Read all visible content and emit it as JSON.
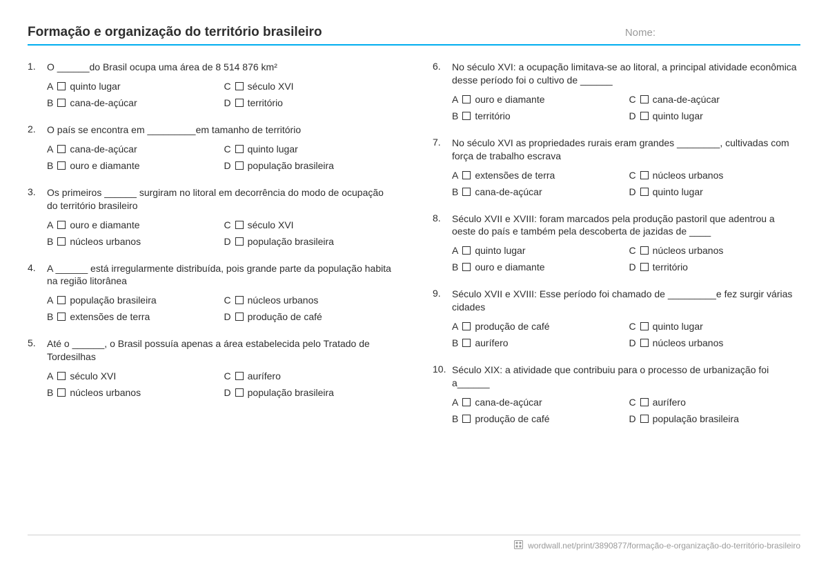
{
  "header": {
    "title": "Formação e organização do território brasileiro",
    "name_label": "Nome:"
  },
  "colors": {
    "rule": "#00aeef",
    "text": "#2e2e2e",
    "muted": "#9a9a9a",
    "border": "#cfcfcf"
  },
  "questions": [
    {
      "n": "1.",
      "text": "O ______do Brasil ocupa uma área de 8 514 876 km²",
      "opts": {
        "A": "quinto lugar",
        "B": "cana-de-açúcar",
        "C": "século XVI",
        "D": "território"
      }
    },
    {
      "n": "2.",
      "text": "O país se encontra em _________em tamanho de território",
      "opts": {
        "A": "cana-de-açúcar",
        "B": "ouro e diamante",
        "C": "quinto lugar",
        "D": "população brasileira"
      }
    },
    {
      "n": "3.",
      "text": "Os primeiros ______ surgiram no litoral em decorrência do modo de ocupação do território brasileiro",
      "opts": {
        "A": "ouro e diamante",
        "B": "núcleos urbanos",
        "C": "século XVI",
        "D": "população brasileira"
      }
    },
    {
      "n": "4.",
      "text": "A ______ está irregularmente distribuída, pois grande parte da população habita na região litorânea",
      "opts": {
        "A": "população brasileira",
        "B": "extensões de terra",
        "C": "núcleos urbanos",
        "D": "produção de café"
      }
    },
    {
      "n": "5.",
      "text": "Até o ______, o Brasil possuía apenas a área estabelecida pelo Tratado de Tordesilhas",
      "opts": {
        "A": "século XVI",
        "B": "núcleos urbanos",
        "C": "aurífero",
        "D": "população brasileira"
      }
    },
    {
      "n": "6.",
      "text": "No século XVI: a ocupação limitava-se ao litoral, a principal atividade econômica desse período foi o cultivo de ______",
      "opts": {
        "A": "ouro e diamante",
        "B": "território",
        "C": "cana-de-açúcar",
        "D": "quinto lugar"
      }
    },
    {
      "n": "7.",
      "text": "No século XVI as propriedades rurais eram grandes ________, cultivadas com força de trabalho escrava",
      "opts": {
        "A": "extensões de terra",
        "B": "cana-de-açúcar",
        "C": "núcleos urbanos",
        "D": "quinto lugar"
      }
    },
    {
      "n": "8.",
      "text": "Século XVII e XVIII: foram marcados pela produção pastoril que adentrou a oeste do país e também pela descoberta de jazidas de ____",
      "opts": {
        "A": "quinto lugar",
        "B": "ouro e diamante",
        "C": "núcleos urbanos",
        "D": "território"
      }
    },
    {
      "n": "9.",
      "text": "Século XVII e XVIII: Esse período foi chamado de _________e fez surgir várias cidades",
      "opts": {
        "A": "produção de café",
        "B": "aurífero",
        "C": "quinto lugar",
        "D": "núcleos urbanos"
      }
    },
    {
      "n": "10.",
      "text": "Século XIX: a atividade que contribuiu para o processo de urbanização foi a______",
      "opts": {
        "A": "cana-de-açúcar",
        "B": "produção de café",
        "C": "aurífero",
        "D": "população brasileira"
      }
    }
  ],
  "footer": {
    "url": "wordwall.net/print/3890877/formação-e-organização-do-território-brasileiro"
  },
  "letters": {
    "A": "A",
    "B": "B",
    "C": "C",
    "D": "D"
  }
}
